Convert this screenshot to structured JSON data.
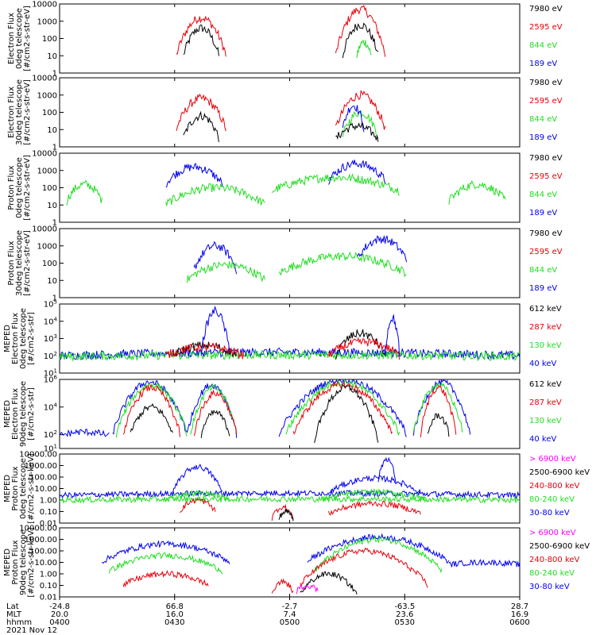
{
  "colors": {
    "black": "#000000",
    "red": "#e8000b",
    "green": "#22dd22",
    "blue": "#0000ee",
    "magenta": "#ff00ff"
  },
  "footer": {
    "row_labels": [
      "Lat",
      "MLT",
      "hhmm"
    ],
    "date": "2021 Nov 12",
    "columns": [
      {
        "lat": "-24.8",
        "mlt": "20.0",
        "hhmm": "0400"
      },
      {
        "lat": "66.8",
        "mlt": "16.0",
        "hhmm": "0430"
      },
      {
        "lat": "-2.7",
        "mlt": "7.4",
        "hhmm": "0500"
      },
      {
        "lat": "-63.5",
        "mlt": "23.6",
        "hhmm": "0530"
      },
      {
        "lat": "28.7",
        "mlt": "16.9",
        "hhmm": "0600"
      }
    ]
  },
  "chart_data": [
    {
      "type": "line",
      "ylabel": [
        "Electron Flux",
        "0deg telescope",
        "[#/cm2-s-str-eV]"
      ],
      "yscale": "log",
      "ylim": [
        1,
        10000
      ],
      "yticks": [
        "1",
        "10",
        "100",
        "1000",
        "10000"
      ],
      "legend": [
        {
          "name": "7980 eV",
          "color": "black"
        },
        {
          "name": "2595 eV",
          "color": "red"
        },
        {
          "name": "844 eV",
          "color": "green"
        },
        {
          "name": "189 eV",
          "color": "blue"
        }
      ],
      "features": [
        {
          "series": "black",
          "x0": 0.35,
          "x1": 0.45,
          "peak": 2.6,
          "base": 1
        },
        {
          "series": "red",
          "x0": 0.33,
          "x1": 0.47,
          "peak": 3.2,
          "base": 1
        },
        {
          "series": "red",
          "x0": 0.78,
          "x1": 0.92,
          "peak": 3.7,
          "base": 1
        },
        {
          "series": "black",
          "x0": 0.8,
          "x1": 0.9,
          "peak": 2.8,
          "base": 1
        },
        {
          "series": "green",
          "x0": 0.84,
          "x1": 0.88,
          "peak": 1.8,
          "base": 1
        }
      ]
    },
    {
      "type": "line",
      "ylabel": [
        "Electron Flux",
        "30deg telescope",
        "[#/cm2-s-str-eV]"
      ],
      "yscale": "log",
      "ylim": [
        1,
        10000
      ],
      "yticks": [
        "1",
        "10",
        "100",
        "1000",
        "10000"
      ],
      "legend": [
        {
          "name": "7980 eV",
          "color": "black"
        },
        {
          "name": "2595 eV",
          "color": "red"
        },
        {
          "name": "844 eV",
          "color": "green"
        },
        {
          "name": "189 eV",
          "color": "blue"
        }
      ],
      "features": [
        {
          "series": "red",
          "x0": 0.33,
          "x1": 0.47,
          "peak": 2.8,
          "base": 1
        },
        {
          "series": "black",
          "x0": 0.35,
          "x1": 0.45,
          "peak": 1.8,
          "base": 0.5
        },
        {
          "series": "red",
          "x0": 0.78,
          "x1": 0.92,
          "peak": 3.0,
          "base": 1
        },
        {
          "series": "green",
          "x0": 0.8,
          "x1": 0.9,
          "peak": 2.0,
          "base": 0.6
        },
        {
          "series": "blue",
          "x0": 0.8,
          "x1": 0.86,
          "peak": 2.4,
          "base": 1
        },
        {
          "series": "black",
          "x0": 0.78,
          "x1": 0.9,
          "peak": 1.2,
          "base": 0.4
        }
      ]
    },
    {
      "type": "line",
      "ylabel": [
        "Proton Flux",
        "0deg telescope",
        "[#/cm2-s-str-eV]"
      ],
      "yscale": "log",
      "ylim": [
        1,
        10000
      ],
      "yticks": [
        "1",
        "10",
        "100",
        "1000",
        "10000"
      ],
      "legend": [
        {
          "name": "7980 eV",
          "color": "black"
        },
        {
          "name": "2595 eV",
          "color": "red"
        },
        {
          "name": "844 eV",
          "color": "green"
        },
        {
          "name": "189 eV",
          "color": "blue"
        }
      ],
      "features": [
        {
          "series": "green",
          "x0": 0.02,
          "x1": 0.12,
          "peak": 2.2,
          "base": 1.2
        },
        {
          "series": "blue",
          "x0": 0.3,
          "x1": 0.46,
          "peak": 3.2,
          "base": 2.2
        },
        {
          "series": "green",
          "x0": 0.3,
          "x1": 0.58,
          "peak": 2.0,
          "base": 1.0
        },
        {
          "series": "green",
          "x0": 0.6,
          "x1": 0.96,
          "peak": 2.6,
          "base": 1.8
        },
        {
          "series": "blue",
          "x0": 0.76,
          "x1": 0.92,
          "peak": 3.4,
          "base": 2.4
        },
        {
          "series": "green",
          "x0": 1.1,
          "x1": 1.26,
          "peak": 2.2,
          "base": 1.2
        }
      ]
    },
    {
      "type": "line",
      "ylabel": [
        "Proton Flux",
        "30deg telescope",
        "[#/cm2-s-str-eV]"
      ],
      "yscale": "log",
      "ylim": [
        1,
        10000
      ],
      "yticks": [
        "1",
        "10",
        "100",
        "1000",
        "10000"
      ],
      "legend": [
        {
          "name": "7980 eV",
          "color": "black"
        },
        {
          "name": "2595 eV",
          "color": "red"
        },
        {
          "name": "844 eV",
          "color": "green"
        },
        {
          "name": "189 eV",
          "color": "blue"
        }
      ],
      "features": [
        {
          "series": "blue",
          "x0": 0.38,
          "x1": 0.5,
          "peak": 3.0,
          "base": 1.6
        },
        {
          "series": "green",
          "x0": 0.36,
          "x1": 0.58,
          "peak": 1.9,
          "base": 1.0
        },
        {
          "series": "green",
          "x0": 0.62,
          "x1": 0.98,
          "peak": 2.4,
          "base": 1.4
        },
        {
          "series": "blue",
          "x0": 0.84,
          "x1": 0.98,
          "peak": 3.4,
          "base": 2.2
        }
      ]
    },
    {
      "type": "line",
      "ylabel": [
        "MEPED",
        "Electron Flux",
        "0deg telescope",
        "[#/cm2-s-str]"
      ],
      "yscale": "log",
      "ylim": [
        10,
        100000
      ],
      "yticks": [
        "10^1",
        "10^2",
        "10^3",
        "10^4",
        "10^5"
      ],
      "legend": [
        {
          "name": "612 keV",
          "color": "black"
        },
        {
          "name": "287 keV",
          "color": "red"
        },
        {
          "name": "130 keV",
          "color": "green"
        },
        {
          "name": "40 keV",
          "color": "blue"
        }
      ],
      "features": [
        {
          "series": "blue",
          "x0": 0.0,
          "x1": 1.3,
          "peak": 2.2,
          "base": 2.0
        },
        {
          "series": "green",
          "x0": 0.0,
          "x1": 1.3,
          "peak": 2.05,
          "base": 1.95
        },
        {
          "series": "black",
          "x0": 0.32,
          "x1": 0.5,
          "peak": 2.6,
          "base": 2.0
        },
        {
          "series": "red",
          "x0": 0.3,
          "x1": 0.52,
          "peak": 2.5,
          "base": 2.0
        },
        {
          "series": "blue",
          "x0": 0.4,
          "x1": 0.48,
          "peak": 4.6,
          "base": 2.2
        },
        {
          "series": "black",
          "x0": 0.78,
          "x1": 0.92,
          "peak": 3.3,
          "base": 2.0
        },
        {
          "series": "red",
          "x0": 0.76,
          "x1": 0.96,
          "peak": 2.8,
          "base": 2.0
        },
        {
          "series": "blue",
          "x0": 0.92,
          "x1": 0.96,
          "peak": 4.2,
          "base": 2.2
        }
      ]
    },
    {
      "type": "line",
      "ylabel": [
        "MEPED",
        "Electron Flux",
        "90deg telescope",
        "[#/cm2-s-str]"
      ],
      "yscale": "log",
      "ylim": [
        10,
        1000000
      ],
      "yticks": [
        "10^1",
        "10^2",
        "10^4",
        "10^6"
      ],
      "legend": [
        {
          "name": "612 keV",
          "color": "black"
        },
        {
          "name": "287 keV",
          "color": "red"
        },
        {
          "name": "130 keV",
          "color": "green"
        },
        {
          "name": "40 keV",
          "color": "blue"
        }
      ],
      "features": [
        {
          "series": "blue",
          "x0": 0.0,
          "x1": 0.14,
          "peak": 2.2,
          "base": 1.9
        },
        {
          "series": "blue",
          "x0": 0.15,
          "x1": 0.36,
          "peak": 5.8,
          "base": 2.0
        },
        {
          "series": "green",
          "x0": 0.16,
          "x1": 0.36,
          "peak": 5.6,
          "base": 2.0
        },
        {
          "series": "red",
          "x0": 0.18,
          "x1": 0.34,
          "peak": 5.4,
          "base": 2.0
        },
        {
          "series": "black",
          "x0": 0.2,
          "x1": 0.32,
          "peak": 4.0,
          "base": 2.0
        },
        {
          "series": "blue",
          "x0": 0.36,
          "x1": 0.5,
          "peak": 5.6,
          "base": 2.0
        },
        {
          "series": "green",
          "x0": 0.37,
          "x1": 0.5,
          "peak": 5.4,
          "base": 2.0
        },
        {
          "series": "red",
          "x0": 0.38,
          "x1": 0.5,
          "peak": 5.0,
          "base": 2.0
        },
        {
          "series": "black",
          "x0": 0.4,
          "x1": 0.48,
          "peak": 3.6,
          "base": 2.0
        },
        {
          "series": "blue",
          "x0": 0.62,
          "x1": 0.98,
          "peak": 6.0,
          "base": 2.0
        },
        {
          "series": "green",
          "x0": 0.64,
          "x1": 0.96,
          "peak": 5.8,
          "base": 2.0
        },
        {
          "series": "red",
          "x0": 0.66,
          "x1": 0.94,
          "peak": 5.6,
          "base": 2.0
        },
        {
          "series": "black",
          "x0": 0.72,
          "x1": 0.9,
          "peak": 5.4,
          "base": 1.6
        },
        {
          "series": "blue",
          "x0": 1.0,
          "x1": 1.16,
          "peak": 5.8,
          "base": 2.0
        },
        {
          "series": "green",
          "x0": 1.0,
          "x1": 1.14,
          "peak": 5.6,
          "base": 2.0
        },
        {
          "series": "red",
          "x0": 1.02,
          "x1": 1.12,
          "peak": 5.4,
          "base": 2.0
        },
        {
          "series": "black",
          "x0": 1.04,
          "x1": 1.1,
          "peak": 3.4,
          "base": 2.0
        }
      ]
    },
    {
      "type": "line",
      "ylabel": [
        "MEPED",
        "Proton Flux",
        "0deg telescope",
        "[#/cm2-s-str-keV]"
      ],
      "yscale": "log",
      "ylim": [
        0.01,
        10000
      ],
      "yticks": [
        "0.01",
        "0.10",
        "1.00",
        "10.00",
        "100.00",
        "1000.00",
        "10000.00"
      ],
      "legend": [
        {
          "name": "> 6900 keV",
          "color": "magenta"
        },
        {
          "name": "2500-6900 keV",
          "color": "black"
        },
        {
          "name": "240-800 keV",
          "color": "red"
        },
        {
          "name": "80-240 keV",
          "color": "green"
        },
        {
          "name": "30-80 keV",
          "color": "blue"
        }
      ],
      "features": [
        {
          "series": "blue",
          "x0": 0.0,
          "x1": 1.3,
          "peak": 0.6,
          "base": 0.4
        },
        {
          "series": "green",
          "x0": 0.0,
          "x1": 1.3,
          "peak": 0.1,
          "base": 0.0
        },
        {
          "series": "blue",
          "x0": 0.32,
          "x1": 0.46,
          "peak": 2.9,
          "base": 0.6
        },
        {
          "series": "green",
          "x0": 0.3,
          "x1": 0.48,
          "peak": 0.6,
          "base": 0.0
        },
        {
          "series": "red",
          "x0": 0.34,
          "x1": 0.44,
          "peak": 0.0,
          "base": -1.0
        },
        {
          "series": "blue",
          "x0": 0.76,
          "x1": 1.02,
          "peak": 1.9,
          "base": 0.6
        },
        {
          "series": "blue",
          "x0": 0.9,
          "x1": 0.95,
          "peak": 3.6,
          "base": 1.6
        },
        {
          "series": "green",
          "x0": 0.74,
          "x1": 1.04,
          "peak": 0.7,
          "base": 0.0
        },
        {
          "series": "red",
          "x0": 0.6,
          "x1": 0.66,
          "peak": -0.6,
          "base": -1.6
        },
        {
          "series": "red",
          "x0": 0.76,
          "x1": 1.02,
          "peak": -0.3,
          "base": -1.2
        },
        {
          "series": "black",
          "x0": 0.62,
          "x1": 0.66,
          "peak": -1.0,
          "base": -1.6
        }
      ]
    },
    {
      "type": "line",
      "ylabel": [
        "MEPED",
        "Proton Flux",
        "90deg telescope",
        "[#/cm2-s-str-keV]"
      ],
      "yscale": "log",
      "ylim": [
        0.01,
        10000
      ],
      "yticks": [
        "0.01",
        "0.10",
        "1.00",
        "10.00",
        "100.00",
        "1000.00",
        "10000.00"
      ],
      "legend": [
        {
          "name": "> 6900 keV",
          "color": "magenta"
        },
        {
          "name": "2500-6900 keV",
          "color": "black"
        },
        {
          "name": "240-800 keV",
          "color": "red"
        },
        {
          "name": "80-240 keV",
          "color": "green"
        },
        {
          "name": "30-80 keV",
          "color": "blue"
        }
      ],
      "features": [
        {
          "series": "blue",
          "x0": 0.12,
          "x1": 0.48,
          "peak": 2.6,
          "base": 1.0
        },
        {
          "series": "green",
          "x0": 0.14,
          "x1": 0.46,
          "peak": 1.6,
          "base": 0.2
        },
        {
          "series": "red",
          "x0": 0.18,
          "x1": 0.42,
          "peak": 0.0,
          "base": -1.0
        },
        {
          "series": "blue",
          "x0": 0.7,
          "x1": 1.1,
          "peak": 3.2,
          "base": 1.0
        },
        {
          "series": "green",
          "x0": 0.72,
          "x1": 1.08,
          "peak": 3.0,
          "base": 0.2
        },
        {
          "series": "red",
          "x0": 0.68,
          "x1": 1.04,
          "peak": 2.0,
          "base": -1.0
        },
        {
          "series": "black",
          "x0": 0.68,
          "x1": 0.84,
          "peak": 0.0,
          "base": -1.8
        },
        {
          "series": "magenta",
          "x0": 0.67,
          "x1": 0.73,
          "peak": -1.0,
          "base": -1.5
        },
        {
          "series": "red",
          "x0": 0.6,
          "x1": 0.66,
          "peak": -0.7,
          "base": -1.6
        },
        {
          "series": "blue",
          "x0": 1.1,
          "x1": 1.3,
          "peak": 1.0,
          "base": 0.8
        }
      ]
    }
  ]
}
